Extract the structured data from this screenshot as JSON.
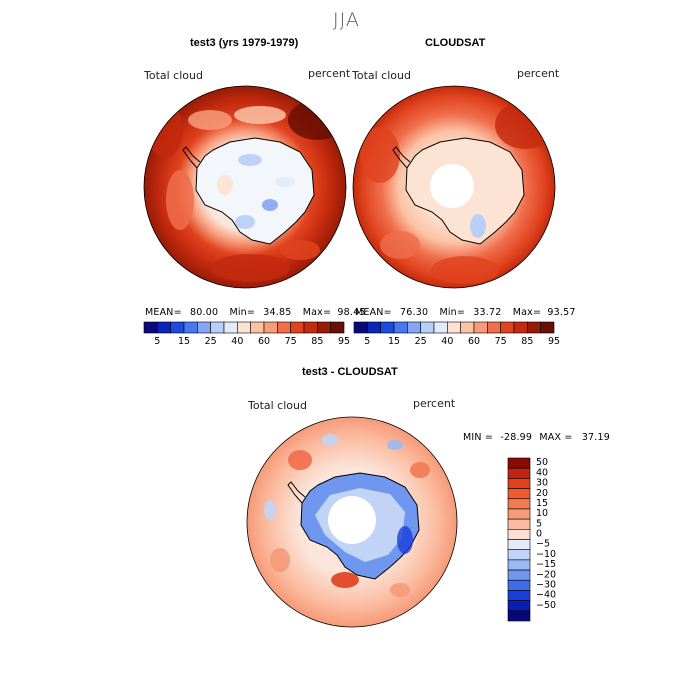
{
  "season_title": "JJA",
  "chart_data": [
    {
      "type": "heatmap",
      "title": "test3 (yrs 1979-1979)",
      "variable": "Total cloud",
      "units": "percent",
      "projection": "polar stereographic",
      "stats": {
        "mean_label": "MEAN=",
        "mean": "80.00",
        "min_label": "Min=",
        "min": "34.85",
        "max_label": "Max=",
        "max": "98.45"
      },
      "colorbar": {
        "levels": [
          "5",
          "15",
          "25",
          "40",
          "60",
          "75",
          "85",
          "95"
        ],
        "colors": [
          "#0a0a7a",
          "#0b25b8",
          "#1c4be0",
          "#4a78f0",
          "#84a6f4",
          "#b9cff7",
          "#e2ebfa",
          "#fde3d4",
          "#fbc3a6",
          "#f79c7b",
          "#f06e4c",
          "#e0431f",
          "#c32a0e",
          "#981b08",
          "#6a0f04"
        ]
      }
    },
    {
      "type": "heatmap",
      "title": "CLOUDSAT",
      "variable": "Total cloud",
      "units": "percent",
      "projection": "polar stereographic",
      "stats": {
        "mean_label": "MEAN=",
        "mean": "76.30",
        "min_label": "Min=",
        "min": "33.72",
        "max_label": "Max=",
        "max": "93.57"
      },
      "colorbar": {
        "levels": [
          "5",
          "15",
          "25",
          "40",
          "60",
          "75",
          "85",
          "95"
        ],
        "colors": [
          "#0a0a7a",
          "#0b25b8",
          "#1c4be0",
          "#4a78f0",
          "#84a6f4",
          "#b9cff7",
          "#e2ebfa",
          "#fde3d4",
          "#fbc3a6",
          "#f79c7b",
          "#f06e4c",
          "#e0431f",
          "#c32a0e",
          "#981b08",
          "#6a0f04"
        ]
      }
    },
    {
      "type": "heatmap",
      "title": "test3 - CLOUDSAT",
      "variable": "Total cloud",
      "units": "percent",
      "projection": "polar stereographic",
      "stats": {
        "min_label": "MIN =",
        "min": "-28.99",
        "max_label": "MAX =",
        "max": "37.19"
      },
      "colorbar": {
        "levels": [
          "50",
          "40",
          "30",
          "20",
          "15",
          "10",
          "5",
          "0",
          "−5",
          "−10",
          "−15",
          "−20",
          "−30",
          "−40",
          "−50"
        ],
        "colors": [
          "#8a0a04",
          "#c02410",
          "#e0401c",
          "#f05a2c",
          "#f27a52",
          "#f69a78",
          "#fbbda2",
          "#fde0d2",
          "#e4ecfa",
          "#c2d4f6",
          "#9ab9f4",
          "#6f97ef",
          "#3f6ce8",
          "#1a3fd8",
          "#0c1db2",
          "#05087a"
        ]
      }
    }
  ]
}
